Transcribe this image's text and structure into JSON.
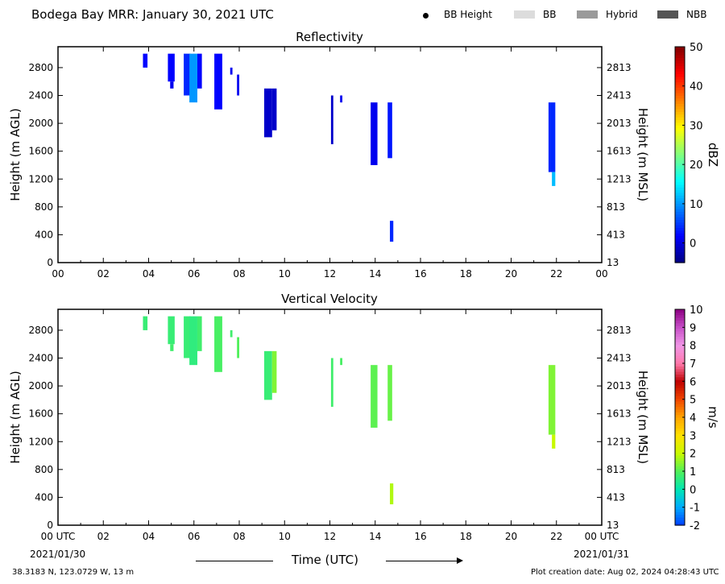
{
  "header": {
    "title": "Bodega Bay MRR:  January 30, 2021 UTC",
    "legend": [
      {
        "label": "BB Height",
        "kind": "dot",
        "color": "#000000"
      },
      {
        "label": "BB",
        "kind": "swatch",
        "color": "#dcdcdc"
      },
      {
        "label": "Hybrid",
        "kind": "swatch",
        "color": "#9a9a9a"
      },
      {
        "label": "NBB",
        "kind": "swatch",
        "color": "#555555"
      }
    ]
  },
  "footer": {
    "location": "38.3183 N, 123.0729 W, 13 m",
    "creation": "Plot creation date: Aug 02, 2024 04:28:43 UTC",
    "date_start": "2021/01/30",
    "date_end": "2021/01/31",
    "xaxis_title": "Time (UTC)"
  },
  "chart_data": [
    {
      "type": "heatmap",
      "title": "Reflectivity",
      "ylabel": "Height (m AGL)",
      "ylabel_right": "Height (m MSL)",
      "x_ticks": [
        "00",
        "02",
        "04",
        "06",
        "08",
        "10",
        "12",
        "14",
        "16",
        "18",
        "20",
        "22",
        "00"
      ],
      "xlim": [
        0,
        24
      ],
      "y_ticks": [
        0,
        400,
        800,
        1200,
        1600,
        2000,
        2400,
        2800
      ],
      "y_ticks_right": [
        "13",
        "413",
        "813",
        "1213",
        "1613",
        "2013",
        "2413",
        "2813"
      ],
      "ylim": [
        0,
        3100
      ],
      "colorbar": {
        "label": "dBZ",
        "range": [
          -5,
          50
        ],
        "ticks": [
          "0",
          "10",
          "20",
          "30",
          "40",
          "50"
        ],
        "tick_values": [
          0,
          10,
          20,
          30,
          40,
          50
        ],
        "colormap": "jet"
      },
      "cells": [
        {
          "t0": 3.75,
          "t1": 3.95,
          "z0": 2800,
          "z1": 3000,
          "v": 2
        },
        {
          "t0": 4.85,
          "t1": 5.15,
          "z0": 2600,
          "z1": 3000,
          "v": 2
        },
        {
          "t0": 4.95,
          "t1": 5.1,
          "z0": 2500,
          "z1": 2600,
          "v": 1
        },
        {
          "t0": 5.55,
          "t1": 5.85,
          "z0": 2400,
          "z1": 3000,
          "v": 4
        },
        {
          "t0": 5.8,
          "t1": 6.15,
          "z0": 2300,
          "z1": 3000,
          "v": 10
        },
        {
          "t0": 6.15,
          "t1": 6.35,
          "z0": 2500,
          "z1": 3000,
          "v": 2
        },
        {
          "t0": 6.9,
          "t1": 7.25,
          "z0": 2200,
          "z1": 3000,
          "v": 2
        },
        {
          "t0": 7.6,
          "t1": 7.7,
          "z0": 2700,
          "z1": 2800,
          "v": 1
        },
        {
          "t0": 7.9,
          "t1": 8.0,
          "z0": 2400,
          "z1": 2700,
          "v": 1
        },
        {
          "t0": 9.1,
          "t1": 9.45,
          "z0": 1800,
          "z1": 2500,
          "v": -1
        },
        {
          "t0": 9.45,
          "t1": 9.65,
          "z0": 1900,
          "z1": 2500,
          "v": -1
        },
        {
          "t0": 12.05,
          "t1": 12.15,
          "z0": 1700,
          "z1": 2400,
          "v": -1
        },
        {
          "t0": 12.45,
          "t1": 12.55,
          "z0": 2300,
          "z1": 2400,
          "v": 1
        },
        {
          "t0": 13.8,
          "t1": 14.1,
          "z0": 1400,
          "z1": 2300,
          "v": 1
        },
        {
          "t0": 14.55,
          "t1": 14.75,
          "z0": 1500,
          "z1": 2300,
          "v": 3
        },
        {
          "t0": 14.65,
          "t1": 14.8,
          "z0": 300,
          "z1": 600,
          "v": 4
        },
        {
          "t0": 21.65,
          "t1": 21.95,
          "z0": 1300,
          "z1": 2300,
          "v": 4
        },
        {
          "t0": 21.8,
          "t1": 21.95,
          "z0": 1100,
          "z1": 1300,
          "v": 12
        }
      ]
    },
    {
      "type": "heatmap",
      "title": "Vertical Velocity",
      "ylabel": "Height (m AGL)",
      "ylabel_right": "Height (m MSL)",
      "x_ticks": [
        "00 UTC",
        "02",
        "04",
        "06",
        "08",
        "10",
        "12",
        "14",
        "16",
        "18",
        "20",
        "22",
        "00 UTC"
      ],
      "xlim": [
        0,
        24
      ],
      "y_ticks": [
        0,
        400,
        800,
        1200,
        1600,
        2000,
        2400,
        2800
      ],
      "y_ticks_right": [
        "13",
        "413",
        "813",
        "1213",
        "1613",
        "2013",
        "2413",
        "2813"
      ],
      "ylim": [
        0,
        3100
      ],
      "colorbar": {
        "label": "m/s",
        "range": [
          -2,
          10
        ],
        "ticks": [
          "-2",
          "-1",
          "0",
          "1",
          "2",
          "3",
          "4",
          "5",
          "6",
          "7",
          "8",
          "9",
          "10"
        ],
        "tick_values": [
          -2,
          -1,
          0,
          1,
          2,
          3,
          4,
          5,
          6,
          7,
          8,
          9,
          10
        ],
        "colormap": "velocity"
      },
      "cells": [
        {
          "t0": 3.75,
          "t1": 3.95,
          "z0": 2800,
          "z1": 3000,
          "v": 0.7
        },
        {
          "t0": 4.85,
          "t1": 5.15,
          "z0": 2600,
          "z1": 3000,
          "v": 0.7
        },
        {
          "t0": 4.95,
          "t1": 5.1,
          "z0": 2500,
          "z1": 2600,
          "v": 0.8
        },
        {
          "t0": 5.55,
          "t1": 5.85,
          "z0": 2400,
          "z1": 3000,
          "v": 0.7
        },
        {
          "t0": 5.8,
          "t1": 6.15,
          "z0": 2300,
          "z1": 3000,
          "v": 0.6
        },
        {
          "t0": 6.15,
          "t1": 6.35,
          "z0": 2500,
          "z1": 3000,
          "v": 0.8
        },
        {
          "t0": 6.9,
          "t1": 7.25,
          "z0": 2200,
          "z1": 3000,
          "v": 0.9
        },
        {
          "t0": 7.6,
          "t1": 7.7,
          "z0": 2700,
          "z1": 2800,
          "v": 0.8
        },
        {
          "t0": 7.9,
          "t1": 8.0,
          "z0": 2400,
          "z1": 2700,
          "v": 1.0
        },
        {
          "t0": 9.1,
          "t1": 9.45,
          "z0": 1800,
          "z1": 2500,
          "v": 0.7
        },
        {
          "t0": 9.45,
          "t1": 9.65,
          "z0": 1900,
          "z1": 2500,
          "v": 1.4
        },
        {
          "t0": 12.05,
          "t1": 12.15,
          "z0": 1700,
          "z1": 2400,
          "v": 0.8
        },
        {
          "t0": 12.45,
          "t1": 12.55,
          "z0": 2300,
          "z1": 2400,
          "v": 0.9
        },
        {
          "t0": 13.8,
          "t1": 14.1,
          "z0": 1400,
          "z1": 2300,
          "v": 1.1
        },
        {
          "t0": 14.55,
          "t1": 14.75,
          "z0": 1500,
          "z1": 2300,
          "v": 1.2
        },
        {
          "t0": 14.65,
          "t1": 14.8,
          "z0": 300,
          "z1": 600,
          "v": 1.8
        },
        {
          "t0": 21.65,
          "t1": 21.95,
          "z0": 1300,
          "z1": 2300,
          "v": 1.4
        },
        {
          "t0": 21.8,
          "t1": 21.95,
          "z0": 1100,
          "z1": 1300,
          "v": 2.0
        }
      ]
    }
  ]
}
